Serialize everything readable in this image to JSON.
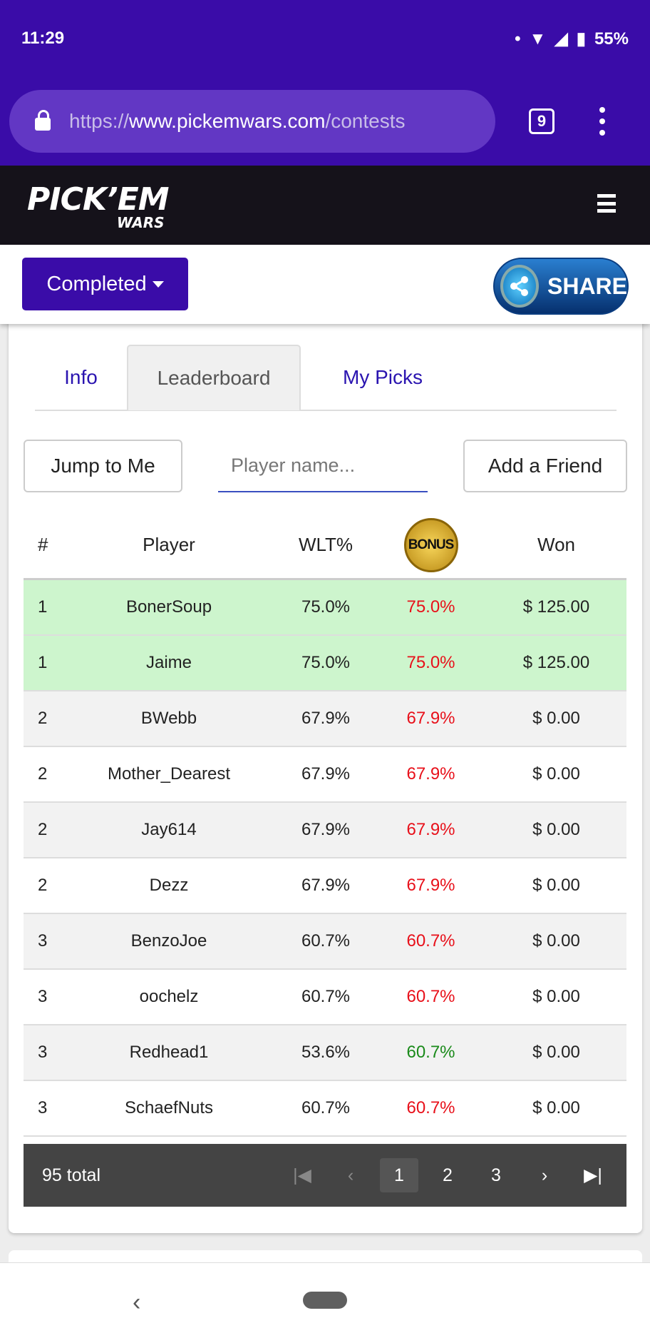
{
  "status_bar": {
    "time": "11:29",
    "battery": "55%"
  },
  "browser": {
    "url_scheme": "https://",
    "url_host": "www.pickemwars.com",
    "url_path": "/contests",
    "tab_count": "9"
  },
  "site": {
    "logo_main": "PICK'EM",
    "logo_sub": "WARS"
  },
  "toolbar": {
    "status_dropdown": "Completed",
    "share_label": "SHARE"
  },
  "tabs": [
    {
      "label": "Info"
    },
    {
      "label": "Leaderboard",
      "active": true
    },
    {
      "label": "My Picks"
    }
  ],
  "actions": {
    "jump_label": "Jump to Me",
    "search_placeholder": "Player name...",
    "add_friend_label": "Add a Friend"
  },
  "table": {
    "headers": {
      "rank": "#",
      "player": "Player",
      "wlt": "WLT%",
      "bonus": "BONUS",
      "won": "Won"
    },
    "rows": [
      {
        "rank": "1",
        "player": "BonerSoup",
        "wlt": "75.0%",
        "bonus": "75.0%",
        "bonus_color": "red",
        "won": "$ 125.00",
        "winner": true
      },
      {
        "rank": "1",
        "player": "Jaime",
        "wlt": "75.0%",
        "bonus": "75.0%",
        "bonus_color": "red",
        "won": "$ 125.00",
        "winner": true
      },
      {
        "rank": "2",
        "player": "BWebb",
        "wlt": "67.9%",
        "bonus": "67.9%",
        "bonus_color": "red",
        "won": "$ 0.00"
      },
      {
        "rank": "2",
        "player": "Mother_Dearest",
        "wlt": "67.9%",
        "bonus": "67.9%",
        "bonus_color": "red",
        "won": "$ 0.00"
      },
      {
        "rank": "2",
        "player": "Jay614",
        "wlt": "67.9%",
        "bonus": "67.9%",
        "bonus_color": "red",
        "won": "$ 0.00"
      },
      {
        "rank": "2",
        "player": "Dezz",
        "wlt": "67.9%",
        "bonus": "67.9%",
        "bonus_color": "red",
        "won": "$ 0.00"
      },
      {
        "rank": "3",
        "player": "BenzoJoe",
        "wlt": "60.7%",
        "bonus": "60.7%",
        "bonus_color": "red",
        "won": "$ 0.00"
      },
      {
        "rank": "3",
        "player": "oochelz",
        "wlt": "60.7%",
        "bonus": "60.7%",
        "bonus_color": "red",
        "won": "$ 0.00"
      },
      {
        "rank": "3",
        "player": "Redhead1",
        "wlt": "53.6%",
        "bonus": "60.7%",
        "bonus_color": "green",
        "won": "$ 0.00"
      },
      {
        "rank": "3",
        "player": "SchaefNuts",
        "wlt": "60.7%",
        "bonus": "60.7%",
        "bonus_color": "red",
        "won": "$ 0.00"
      }
    ]
  },
  "pagination": {
    "total": "95 total",
    "pages": [
      "1",
      "2",
      "3"
    ],
    "current": "1"
  },
  "colors": {
    "brand": "#3a0ca8",
    "winner_row": "#cdf5cd",
    "bonus_down": "#e8101a",
    "bonus_up": "#1a8a1a"
  }
}
